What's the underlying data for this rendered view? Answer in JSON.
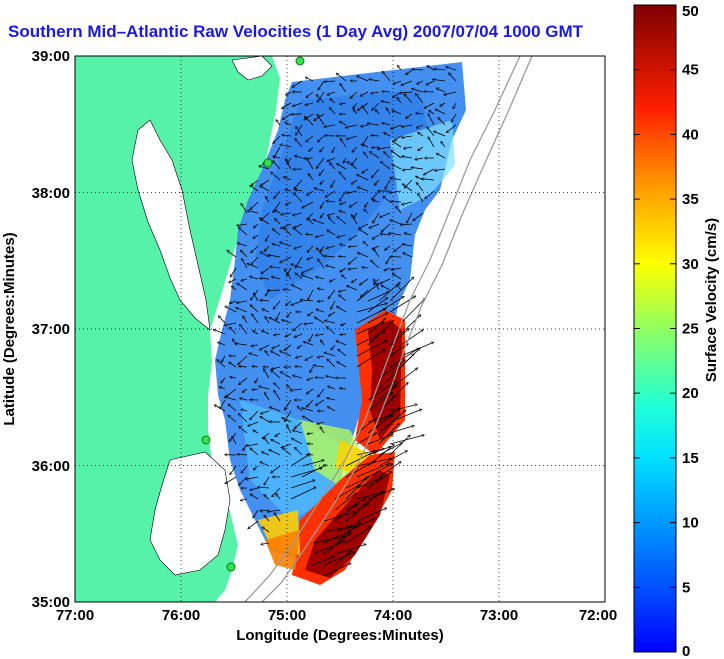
{
  "title": "Southern Mid–Atlantic Raw Velocities (1 Day Avg) 2007/07/04 1000 GMT",
  "map": {
    "xlabel": "Longitude (Degrees:Minutes)",
    "ylabel": "Latitude (Degrees:Minutes)",
    "lon_ticks": [
      "77:00",
      "76:00",
      "75:00",
      "74:00",
      "73:00",
      "72:00"
    ],
    "lat_ticks": [
      "39:00",
      "38:00",
      "37:00",
      "36:00",
      "35:00"
    ],
    "land_color": "#55f2a8",
    "water_color": "#ffffff",
    "grid": "dotted",
    "field_visible": "surface current velocity field with arrows"
  },
  "colorbar": {
    "label": "Surface Velocity (cm/s)",
    "ticks": [
      "50",
      "45",
      "40",
      "35",
      "30",
      "25",
      "20",
      "15",
      "10",
      "5",
      "0"
    ],
    "min": 0,
    "max": 50,
    "colormap": "jet"
  }
}
